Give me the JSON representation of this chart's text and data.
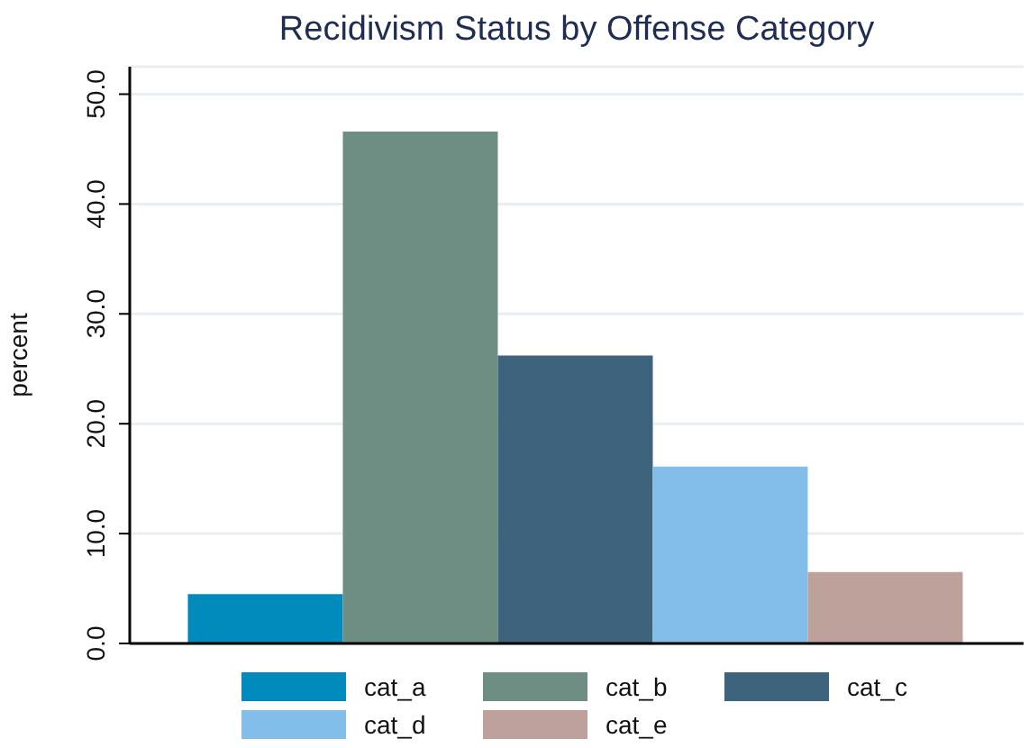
{
  "chart_data": {
    "type": "bar",
    "title": "Recidivism Status by Offense Category",
    "ylabel": "percent",
    "categories": [
      null
    ],
    "series": [
      {
        "name": "cat_a",
        "color": "#008bbc",
        "values": [
          4.5
        ]
      },
      {
        "name": "cat_b",
        "color": "#6e8e84",
        "values": [
          46.6
        ]
      },
      {
        "name": "cat_c",
        "color": "#3e647d",
        "values": [
          26.2
        ]
      },
      {
        "name": "cat_d",
        "color": "#82bee9",
        "values": [
          16.1
        ]
      },
      {
        "name": "cat_e",
        "color": "#bea19b",
        "values": [
          6.5
        ]
      }
    ],
    "ylim": [
      0,
      52.5
    ],
    "yticks": [
      {
        "value": 0,
        "label": "0.0"
      },
      {
        "value": 10,
        "label": "10.0"
      },
      {
        "value": 20,
        "label": "20.0"
      },
      {
        "value": 30,
        "label": "30.0"
      },
      {
        "value": 40,
        "label": "40.0"
      },
      {
        "value": 50,
        "label": "50.0"
      }
    ],
    "grid": "y",
    "legend": "bottom"
  }
}
